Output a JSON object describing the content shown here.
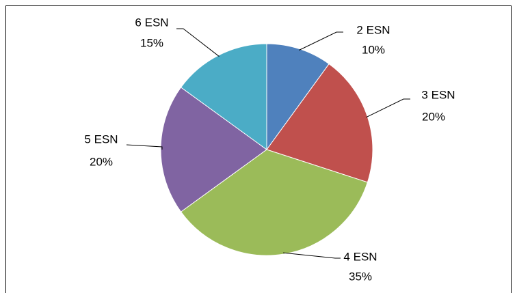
{
  "chart_data": {
    "type": "pie",
    "categories": [
      "2 ESN",
      "3 ESN",
      "4 ESN",
      "5 ESN",
      "6 ESN"
    ],
    "values": [
      10,
      20,
      35,
      20,
      15
    ],
    "value_labels": [
      "10%",
      "20%",
      "35%",
      "20%",
      "15%"
    ],
    "colors": [
      "#4f81bd",
      "#c0504d",
      "#9bbb59",
      "#8064a2",
      "#4bacc6"
    ]
  }
}
